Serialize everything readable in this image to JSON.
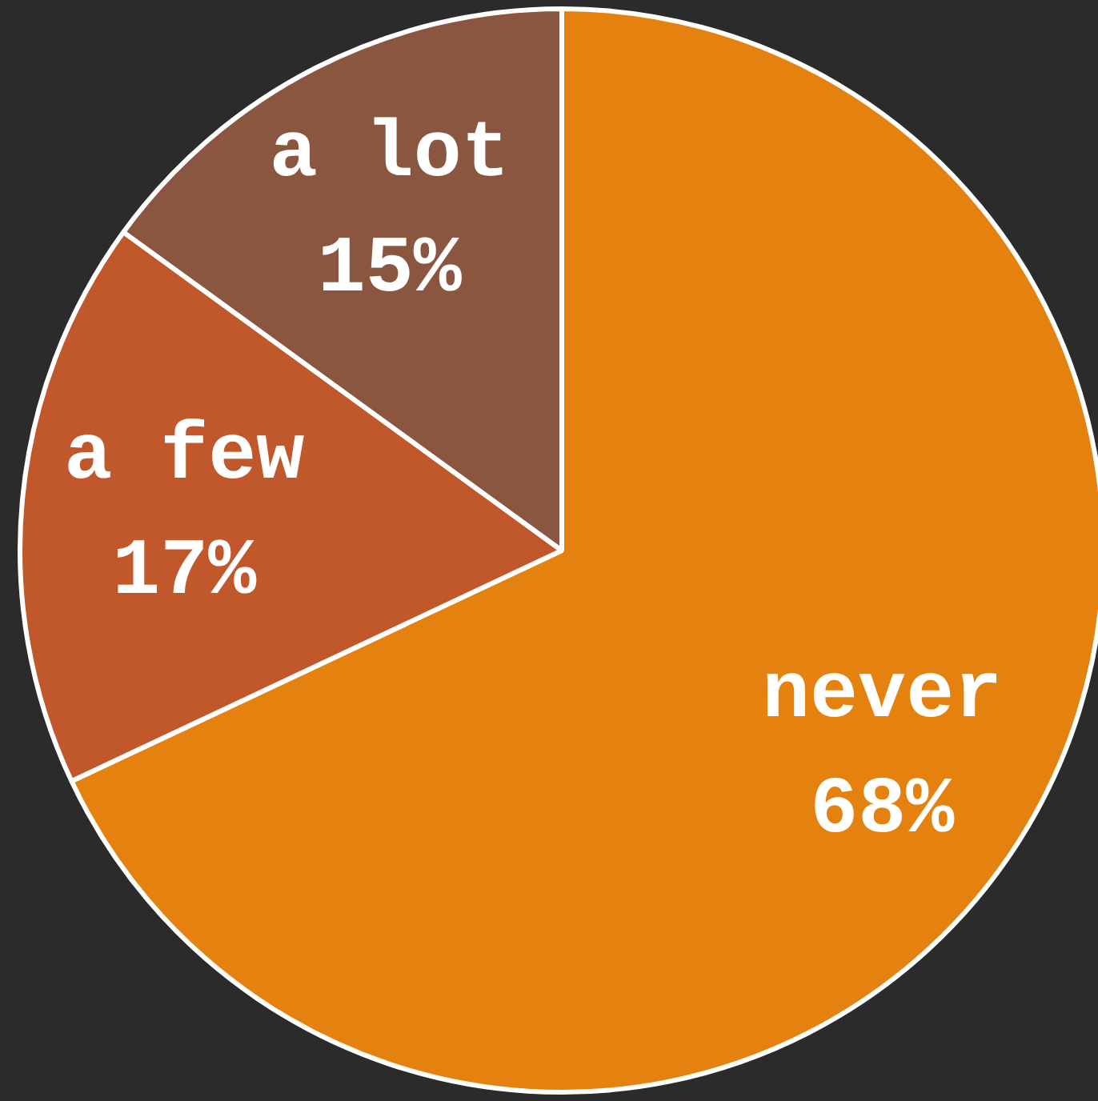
{
  "chart_data": {
    "type": "pie",
    "categories": [
      "never",
      "a few",
      "a lot"
    ],
    "values": [
      68,
      17,
      15
    ],
    "colors": [
      "#e5820f",
      "#c0582b",
      "#8b5640"
    ],
    "value_labels": [
      "68%",
      "17%",
      "15%"
    ],
    "legend": false
  }
}
